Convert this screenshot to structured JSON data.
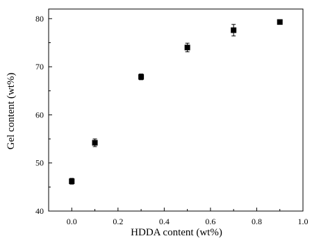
{
  "chart_data": {
    "type": "scatter",
    "title": "",
    "xlabel": "HDDA content (wt%)",
    "ylabel": "Gel content (wt%)",
    "xlim": [
      -0.1,
      1.0
    ],
    "ylim": [
      40,
      82
    ],
    "x_ticks": [
      0.0,
      0.2,
      0.4,
      0.6,
      0.8,
      1.0
    ],
    "x_tick_labels": [
      "0.0",
      "0.2",
      "0.4",
      "0.6",
      "0.8",
      "1.0"
    ],
    "y_ticks": [
      40,
      50,
      60,
      70,
      80
    ],
    "y_tick_labels": [
      "40",
      "50",
      "60",
      "70",
      "80"
    ],
    "grid": false,
    "legend": "none",
    "marker": "square",
    "marker_color": "#000000",
    "series": [
      {
        "x": [
          0.0,
          0.1,
          0.3,
          0.5,
          0.7,
          0.9
        ],
        "y": [
          46.2,
          54.2,
          67.9,
          74.0,
          77.6,
          79.3
        ],
        "yerr": [
          0.6,
          0.8,
          0.6,
          0.9,
          1.2,
          0.4
        ]
      }
    ]
  }
}
